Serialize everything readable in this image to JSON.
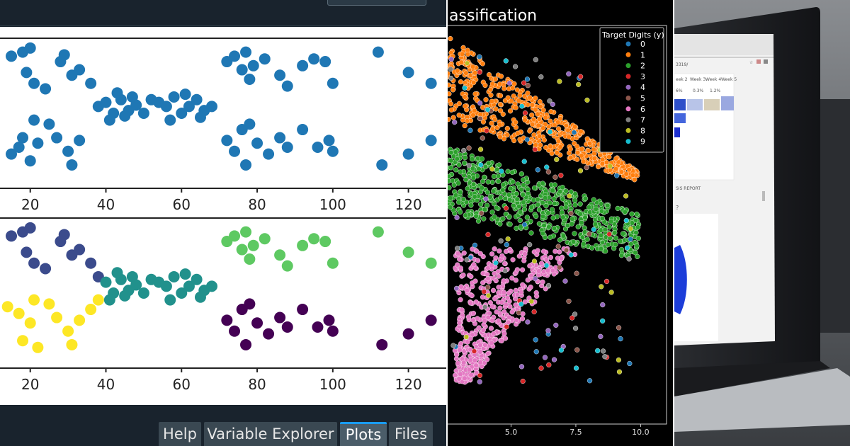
{
  "ide": {
    "tabs": [
      {
        "label": "Help",
        "active": false
      },
      {
        "label": "Variable Explorer",
        "active": false
      },
      {
        "label": "Plots",
        "active": true
      },
      {
        "label": "Files",
        "active": false
      }
    ],
    "accent_color": "#1a9bf0"
  },
  "chart_data": [
    {
      "type": "scatter",
      "title": "",
      "xlabel": "",
      "ylabel": "",
      "xticks": [
        20,
        40,
        60,
        80,
        100,
        120
      ],
      "xlim": [
        12,
        130
      ],
      "ylim": [
        0,
        1
      ],
      "color": "#1f77b4",
      "series": [
        {
          "points": [
            [
              15,
              0.92
            ],
            [
              18,
              0.95
            ],
            [
              19,
              0.8
            ],
            [
              20,
              0.98
            ],
            [
              21,
              0.72
            ],
            [
              24,
              0.68
            ],
            [
              28,
              0.88
            ],
            [
              29,
              0.93
            ],
            [
              31,
              0.78
            ],
            [
              33,
              0.82
            ],
            [
              36,
              0.72
            ],
            [
              15,
              0.2
            ],
            [
              17,
              0.25
            ],
            [
              18,
              0.32
            ],
            [
              20,
              0.15
            ],
            [
              21,
              0.45
            ],
            [
              22,
              0.28
            ],
            [
              25,
              0.42
            ],
            [
              27,
              0.32
            ],
            [
              30,
              0.22
            ],
            [
              31,
              0.12
            ],
            [
              33,
              0.3
            ],
            [
              38,
              0.55
            ],
            [
              40,
              0.58
            ],
            [
              42,
              0.5
            ],
            [
              44,
              0.6
            ],
            [
              46,
              0.52
            ],
            [
              48,
              0.56
            ],
            [
              50,
              0.5
            ],
            [
              54,
              0.58
            ],
            [
              56,
              0.55
            ],
            [
              58,
              0.62
            ],
            [
              60,
              0.5
            ],
            [
              62,
              0.55
            ],
            [
              64,
              0.6
            ],
            [
              66,
              0.52
            ],
            [
              68,
              0.55
            ],
            [
              41,
              0.45
            ],
            [
              43,
              0.65
            ],
            [
              45,
              0.48
            ],
            [
              47,
              0.62
            ],
            [
              52,
              0.6
            ],
            [
              57,
              0.45
            ],
            [
              61,
              0.64
            ],
            [
              65,
              0.47
            ],
            [
              72,
              0.88
            ],
            [
              74,
              0.92
            ],
            [
              76,
              0.82
            ],
            [
              77,
              0.95
            ],
            [
              78,
              0.75
            ],
            [
              79,
              0.85
            ],
            [
              82,
              0.9
            ],
            [
              86,
              0.78
            ],
            [
              88,
              0.7
            ],
            [
              92,
              0.85
            ],
            [
              95,
              0.9
            ],
            [
              98,
              0.88
            ],
            [
              100,
              0.72
            ],
            [
              72,
              0.3
            ],
            [
              74,
              0.22
            ],
            [
              76,
              0.38
            ],
            [
              77,
              0.12
            ],
            [
              78,
              0.42
            ],
            [
              80,
              0.28
            ],
            [
              83,
              0.2
            ],
            [
              86,
              0.32
            ],
            [
              88,
              0.25
            ],
            [
              92,
              0.38
            ],
            [
              96,
              0.25
            ],
            [
              99,
              0.3
            ],
            [
              100,
              0.22
            ],
            [
              112,
              0.95
            ],
            [
              113,
              0.12
            ],
            [
              120,
              0.8
            ],
            [
              120,
              0.2
            ],
            [
              126,
              0.72
            ],
            [
              126,
              0.3
            ]
          ]
        }
      ]
    },
    {
      "type": "scatter",
      "title": "",
      "xlabel": "",
      "ylabel": "",
      "xticks": [
        20,
        40,
        60,
        80,
        100,
        120
      ],
      "xlim": [
        12,
        130
      ],
      "ylim": [
        0,
        1
      ],
      "clusters": [
        {
          "color": "#3b4b8c",
          "points": [
            [
              15,
              0.92
            ],
            [
              18,
              0.95
            ],
            [
              19,
              0.8
            ],
            [
              20,
              0.98
            ],
            [
              21,
              0.72
            ],
            [
              24,
              0.68
            ],
            [
              28,
              0.88
            ],
            [
              29,
              0.93
            ],
            [
              31,
              0.78
            ],
            [
              33,
              0.82
            ],
            [
              36,
              0.72
            ],
            [
              38,
              0.62
            ]
          ]
        },
        {
          "color": "#fde725",
          "points": [
            [
              14,
              0.4
            ],
            [
              17,
              0.35
            ],
            [
              18,
              0.15
            ],
            [
              20,
              0.28
            ],
            [
              21,
              0.45
            ],
            [
              22,
              0.1
            ],
            [
              25,
              0.42
            ],
            [
              27,
              0.32
            ],
            [
              30,
              0.22
            ],
            [
              31,
              0.12
            ],
            [
              33,
              0.3
            ],
            [
              36,
              0.38
            ],
            [
              38,
              0.45
            ]
          ]
        },
        {
          "color": "#21918c",
          "points": [
            [
              40,
              0.58
            ],
            [
              42,
              0.5
            ],
            [
              44,
              0.6
            ],
            [
              46,
              0.52
            ],
            [
              48,
              0.56
            ],
            [
              50,
              0.5
            ],
            [
              54,
              0.58
            ],
            [
              56,
              0.55
            ],
            [
              58,
              0.62
            ],
            [
              60,
              0.5
            ],
            [
              62,
              0.55
            ],
            [
              64,
              0.6
            ],
            [
              66,
              0.52
            ],
            [
              68,
              0.55
            ],
            [
              41,
              0.45
            ],
            [
              43,
              0.65
            ],
            [
              45,
              0.48
            ],
            [
              47,
              0.62
            ],
            [
              52,
              0.6
            ],
            [
              57,
              0.45
            ],
            [
              61,
              0.64
            ],
            [
              65,
              0.47
            ]
          ]
        },
        {
          "color": "#5ec962",
          "points": [
            [
              72,
              0.88
            ],
            [
              74,
              0.92
            ],
            [
              76,
              0.82
            ],
            [
              77,
              0.95
            ],
            [
              78,
              0.75
            ],
            [
              79,
              0.85
            ],
            [
              82,
              0.9
            ],
            [
              86,
              0.78
            ],
            [
              88,
              0.7
            ],
            [
              92,
              0.85
            ],
            [
              95,
              0.9
            ],
            [
              98,
              0.88
            ],
            [
              100,
              0.72
            ],
            [
              112,
              0.95
            ],
            [
              120,
              0.8
            ],
            [
              126,
              0.72
            ]
          ]
        },
        {
          "color": "#440154",
          "points": [
            [
              72,
              0.3
            ],
            [
              74,
              0.22
            ],
            [
              76,
              0.38
            ],
            [
              77,
              0.12
            ],
            [
              78,
              0.42
            ],
            [
              80,
              0.28
            ],
            [
              83,
              0.2
            ],
            [
              86,
              0.32
            ],
            [
              88,
              0.25
            ],
            [
              92,
              0.38
            ],
            [
              96,
              0.25
            ],
            [
              99,
              0.3
            ],
            [
              100,
              0.22
            ],
            [
              113,
              0.12
            ],
            [
              120,
              0.2
            ],
            [
              126,
              0.3
            ]
          ]
        }
      ]
    },
    {
      "type": "scatter",
      "title": "assification",
      "xlabel": "",
      "ylabel": "",
      "xticks": [
        "5.0",
        "7.5",
        "10.0"
      ],
      "xlim": [
        2.5,
        11
      ],
      "legend_title": "Target Digits (y)",
      "legend_placement": "top-right",
      "legend": [
        {
          "label": "0",
          "color": "#1f77b4"
        },
        {
          "label": "1",
          "color": "#ff7f0e"
        },
        {
          "label": "2",
          "color": "#2ca02c"
        },
        {
          "label": "3",
          "color": "#d62728"
        },
        {
          "label": "4",
          "color": "#9467bd"
        },
        {
          "label": "5",
          "color": "#8c564b"
        },
        {
          "label": "6",
          "color": "#e377c2"
        },
        {
          "label": "7",
          "color": "#7f7f7f"
        },
        {
          "label": "8",
          "color": "#bcbd22"
        },
        {
          "label": "9",
          "color": "#17becf"
        }
      ],
      "clusters": [
        {
          "label": "1",
          "color": "#ff7f0e",
          "shape": "upper-band"
        },
        {
          "label": "2",
          "color": "#2ca02c",
          "shape": "middle-band"
        },
        {
          "label": "6",
          "color": "#e377c2",
          "shape": "lower-blob"
        }
      ]
    }
  ],
  "photo": {
    "description_hidden": true,
    "screen": {
      "address_fragment": "3319/",
      "columns": [
        "eek 2",
        "Week 3",
        "Week 4",
        "Week 5"
      ],
      "values": [
        "6%",
        "0.3%",
        "1.2%"
      ],
      "link_text": "SIS REPORT",
      "question_fragment": "?"
    }
  }
}
